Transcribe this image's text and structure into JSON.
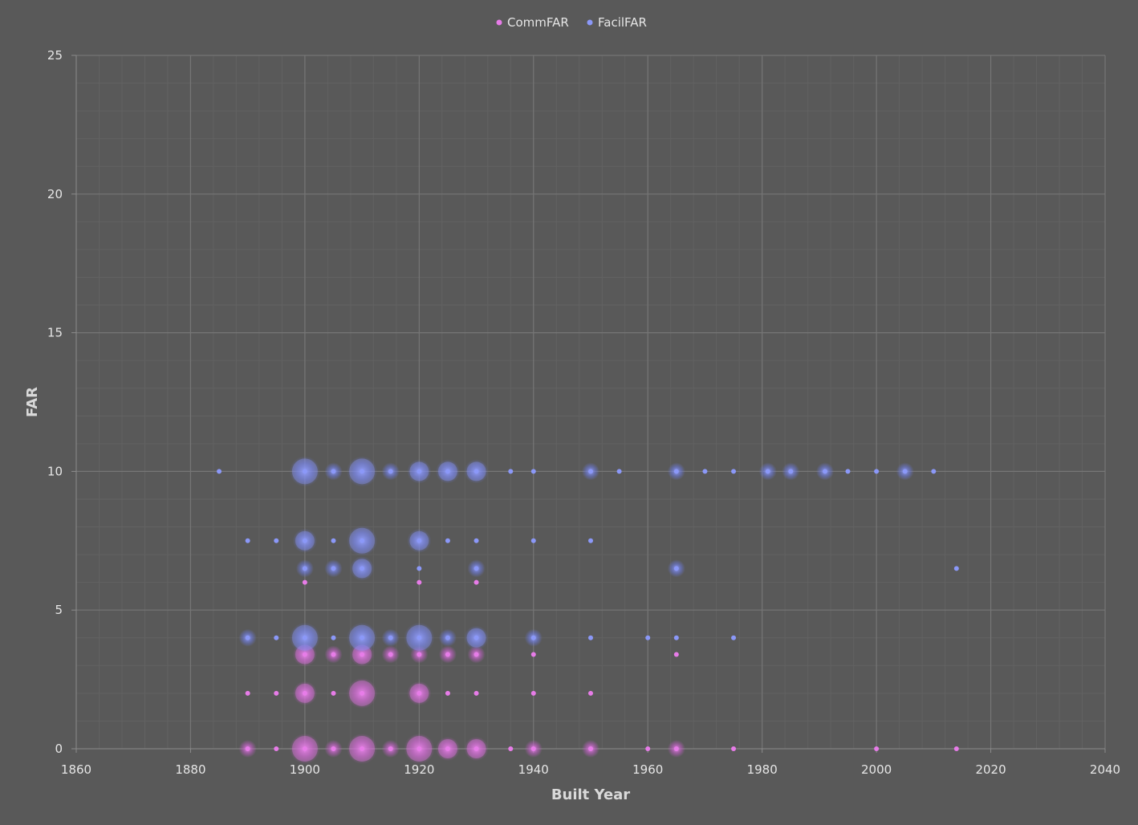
{
  "chart_data": {
    "type": "scatter",
    "xlabel": "Built Year",
    "ylabel": "FAR",
    "xlim": [
      1860,
      2040
    ],
    "ylim": [
      0,
      25
    ],
    "xticks": [
      "1860",
      "1880",
      "1900",
      "1920",
      "1940",
      "1960",
      "1980",
      "2000",
      "2020",
      "2040"
    ],
    "yticks": [
      "0",
      "5",
      "10",
      "15",
      "20",
      "25"
    ],
    "grid": true,
    "legend_position": "top",
    "series": [
      {
        "name": "CommFAR",
        "color": "#e77ce8",
        "points": [
          [
            1890,
            0,
            1
          ],
          [
            1895,
            0,
            0
          ],
          [
            1900,
            0,
            3
          ],
          [
            1905,
            0,
            1
          ],
          [
            1910,
            0,
            3
          ],
          [
            1915,
            0,
            1
          ],
          [
            1920,
            0,
            3
          ],
          [
            1925,
            0,
            2
          ],
          [
            1930,
            0,
            2
          ],
          [
            1936,
            0,
            0
          ],
          [
            1940,
            0,
            1
          ],
          [
            1950,
            0,
            1
          ],
          [
            1960,
            0,
            0
          ],
          [
            1965,
            0,
            1
          ],
          [
            1975,
            0,
            0
          ],
          [
            2000,
            0,
            0
          ],
          [
            2014,
            0,
            0
          ],
          [
            1890,
            2,
            0
          ],
          [
            1895,
            2,
            0
          ],
          [
            1900,
            2,
            2
          ],
          [
            1905,
            2,
            0
          ],
          [
            1910,
            2,
            3
          ],
          [
            1920,
            2,
            2
          ],
          [
            1925,
            2,
            0
          ],
          [
            1930,
            2,
            0
          ],
          [
            1940,
            2,
            0
          ],
          [
            1950,
            2,
            0
          ],
          [
            1900,
            3.4,
            2
          ],
          [
            1905,
            3.4,
            1
          ],
          [
            1910,
            3.4,
            2
          ],
          [
            1915,
            3.4,
            1
          ],
          [
            1920,
            3.4,
            1
          ],
          [
            1925,
            3.4,
            1
          ],
          [
            1930,
            3.4,
            1
          ],
          [
            1940,
            3.4,
            0
          ],
          [
            1965,
            3.4,
            0
          ],
          [
            1900,
            6,
            0
          ],
          [
            1920,
            6,
            0
          ],
          [
            1930,
            6,
            0
          ]
        ]
      },
      {
        "name": "FacilFAR",
        "color": "#8b98f8",
        "points": [
          [
            1885,
            10,
            0
          ],
          [
            1900,
            10,
            3
          ],
          [
            1905,
            10,
            1
          ],
          [
            1910,
            10,
            3
          ],
          [
            1915,
            10,
            1
          ],
          [
            1920,
            10,
            2
          ],
          [
            1925,
            10,
            2
          ],
          [
            1930,
            10,
            2
          ],
          [
            1936,
            10,
            0
          ],
          [
            1940,
            10,
            0
          ],
          [
            1950,
            10,
            1
          ],
          [
            1955,
            10,
            0
          ],
          [
            1965,
            10,
            1
          ],
          [
            1970,
            10,
            0
          ],
          [
            1975,
            10,
            0
          ],
          [
            1981,
            10,
            1
          ],
          [
            1985,
            10,
            1
          ],
          [
            1991,
            10,
            1
          ],
          [
            1995,
            10,
            0
          ],
          [
            2000,
            10,
            0
          ],
          [
            2005,
            10,
            1
          ],
          [
            2010,
            10,
            0
          ],
          [
            1890,
            7.5,
            0
          ],
          [
            1895,
            7.5,
            0
          ],
          [
            1900,
            7.5,
            2
          ],
          [
            1905,
            7.5,
            0
          ],
          [
            1910,
            7.5,
            3
          ],
          [
            1920,
            7.5,
            2
          ],
          [
            1925,
            7.5,
            0
          ],
          [
            1930,
            7.5,
            0
          ],
          [
            1940,
            7.5,
            0
          ],
          [
            1950,
            7.5,
            0
          ],
          [
            1900,
            6.5,
            1
          ],
          [
            1905,
            6.5,
            1
          ],
          [
            1910,
            6.5,
            2
          ],
          [
            1920,
            6.5,
            0
          ],
          [
            1930,
            6.5,
            1
          ],
          [
            1965,
            6.5,
            1
          ],
          [
            2014,
            6.5,
            0
          ],
          [
            1890,
            4,
            1
          ],
          [
            1895,
            4,
            0
          ],
          [
            1900,
            4,
            3
          ],
          [
            1905,
            4,
            0
          ],
          [
            1910,
            4,
            3
          ],
          [
            1915,
            4,
            1
          ],
          [
            1920,
            4,
            3
          ],
          [
            1925,
            4,
            1
          ],
          [
            1930,
            4,
            2
          ],
          [
            1940,
            4,
            1
          ],
          [
            1950,
            4,
            0
          ],
          [
            1960,
            4,
            0
          ],
          [
            1965,
            4,
            0
          ],
          [
            1975,
            4,
            0
          ]
        ]
      }
    ]
  }
}
